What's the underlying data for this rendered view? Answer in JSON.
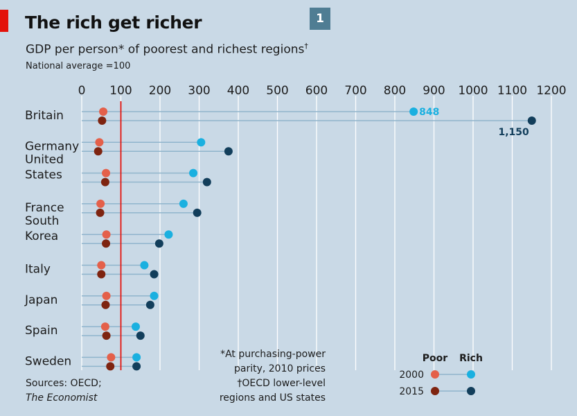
{
  "header": {
    "title": "The rich get richer",
    "badge": "1",
    "subtitle": "GDP per person* of poorest and richest regions",
    "subtitle_mark": "†",
    "note": "National average =100"
  },
  "footer": {
    "source_line1": "Sources: OECD;",
    "source_line2": "The Economist",
    "footnote_lines": [
      "*At purchasing-power",
      "parity, 2010 prices",
      "†OECD lower-level",
      "regions and US states"
    ]
  },
  "legend": {
    "poor_label": "Poor",
    "rich_label": "Rich",
    "row1": "2000",
    "row2": "2015"
  },
  "colors": {
    "background": "#c9d9e6",
    "poor_2000": "#e4604a",
    "poor_2015": "#7e2410",
    "rich_2000": "#1ab0e0",
    "rich_2015": "#123e5b",
    "reference_line": "#e3120b",
    "connector": "#8fb4cc"
  },
  "chart_data": {
    "type": "dot-range",
    "title": "The rich get richer",
    "xlim": [
      0,
      1200
    ],
    "x_ticks": [
      0,
      100,
      200,
      300,
      400,
      500,
      600,
      700,
      800,
      900,
      1000,
      1100,
      1200
    ],
    "reference_value": 100,
    "grid": true,
    "legend_position": "bottom-right",
    "categories": [
      {
        "name": "Britain",
        "lines": [
          "Britain"
        ],
        "poor_2000": 55,
        "rich_2000": 848,
        "poor_2015": 52,
        "rich_2015": 1150
      },
      {
        "name": "Germany",
        "lines": [
          "Germany"
        ],
        "poor_2000": 45,
        "rich_2000": 305,
        "poor_2015": 42,
        "rich_2015": 375
      },
      {
        "name": "United States",
        "lines": [
          "United",
          "States"
        ],
        "poor_2000": 62,
        "rich_2000": 285,
        "poor_2015": 60,
        "rich_2015": 320
      },
      {
        "name": "France",
        "lines": [
          "France"
        ],
        "poor_2000": 48,
        "rich_2000": 260,
        "poor_2015": 47,
        "rich_2015": 295
      },
      {
        "name": "South Korea",
        "lines": [
          "South",
          "Korea"
        ],
        "poor_2000": 63,
        "rich_2000": 222,
        "poor_2015": 62,
        "rich_2015": 198
      },
      {
        "name": "Italy",
        "lines": [
          "Italy"
        ],
        "poor_2000": 50,
        "rich_2000": 160,
        "poor_2015": 50,
        "rich_2015": 185
      },
      {
        "name": "Japan",
        "lines": [
          "Japan"
        ],
        "poor_2000": 63,
        "rich_2000": 185,
        "poor_2015": 61,
        "rich_2015": 175
      },
      {
        "name": "Spain",
        "lines": [
          "Spain"
        ],
        "poor_2000": 60,
        "rich_2000": 138,
        "poor_2015": 63,
        "rich_2015": 150
      },
      {
        "name": "Sweden",
        "lines": [
          "Sweden"
        ],
        "poor_2000": 75,
        "rich_2000": 140,
        "poor_2015": 73,
        "rich_2015": 140
      }
    ],
    "value_labels": [
      {
        "category": "Britain",
        "series": "rich_2000",
        "text": "848"
      },
      {
        "category": "Britain",
        "series": "rich_2015",
        "text": "1,150"
      }
    ]
  }
}
